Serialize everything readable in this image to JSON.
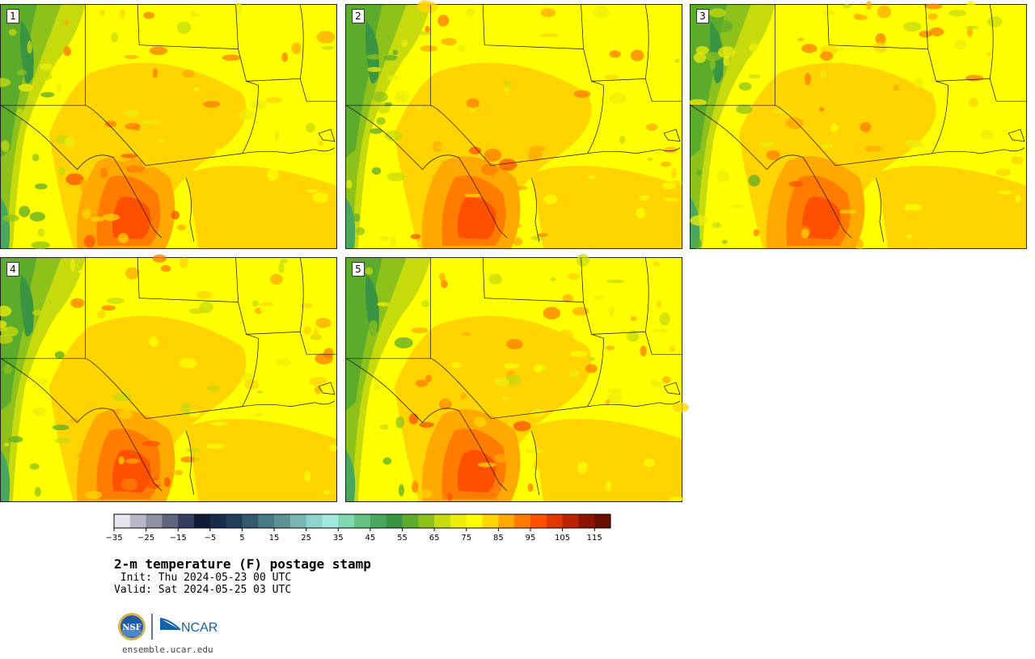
{
  "panels": [
    {
      "label": "1"
    },
    {
      "label": "2"
    },
    {
      "label": "3"
    },
    {
      "label": "4"
    },
    {
      "label": "5"
    }
  ],
  "colorbar": {
    "colors": [
      "#e6e6ef",
      "#b7b9c8",
      "#8e91a4",
      "#5f6480",
      "#343d5f",
      "#101b38",
      "#162c4c",
      "#1f3e5a",
      "#315a6c",
      "#477a84",
      "#5e9396",
      "#78b6b4",
      "#8fd4cc",
      "#a0eadf",
      "#7fd8b0",
      "#65c283",
      "#4aa85e",
      "#3a9442",
      "#5cab2a",
      "#8fc11b",
      "#c7db0c",
      "#eded0a",
      "#ffff00",
      "#ffd400",
      "#ffa800",
      "#ff7c00",
      "#ff5000",
      "#e03800",
      "#bb2200",
      "#8f1400",
      "#6b0e00"
    ],
    "tick_labels": [
      "−35",
      "−25",
      "−15",
      "−5",
      "5",
      "15",
      "25",
      "35",
      "45",
      "55",
      "65",
      "75",
      "85",
      "95",
      "105",
      "115"
    ]
  },
  "title": "2-m temperature (F) postage stamp",
  "init_text": " Init: Thu 2024-05-23 00 UTC",
  "valid_text": "Valid: Sat 2024-05-25 03 UTC",
  "logos": {
    "left": "NSF",
    "right": "NCAR"
  },
  "footer_url": "ensemble.ucar.edu"
}
